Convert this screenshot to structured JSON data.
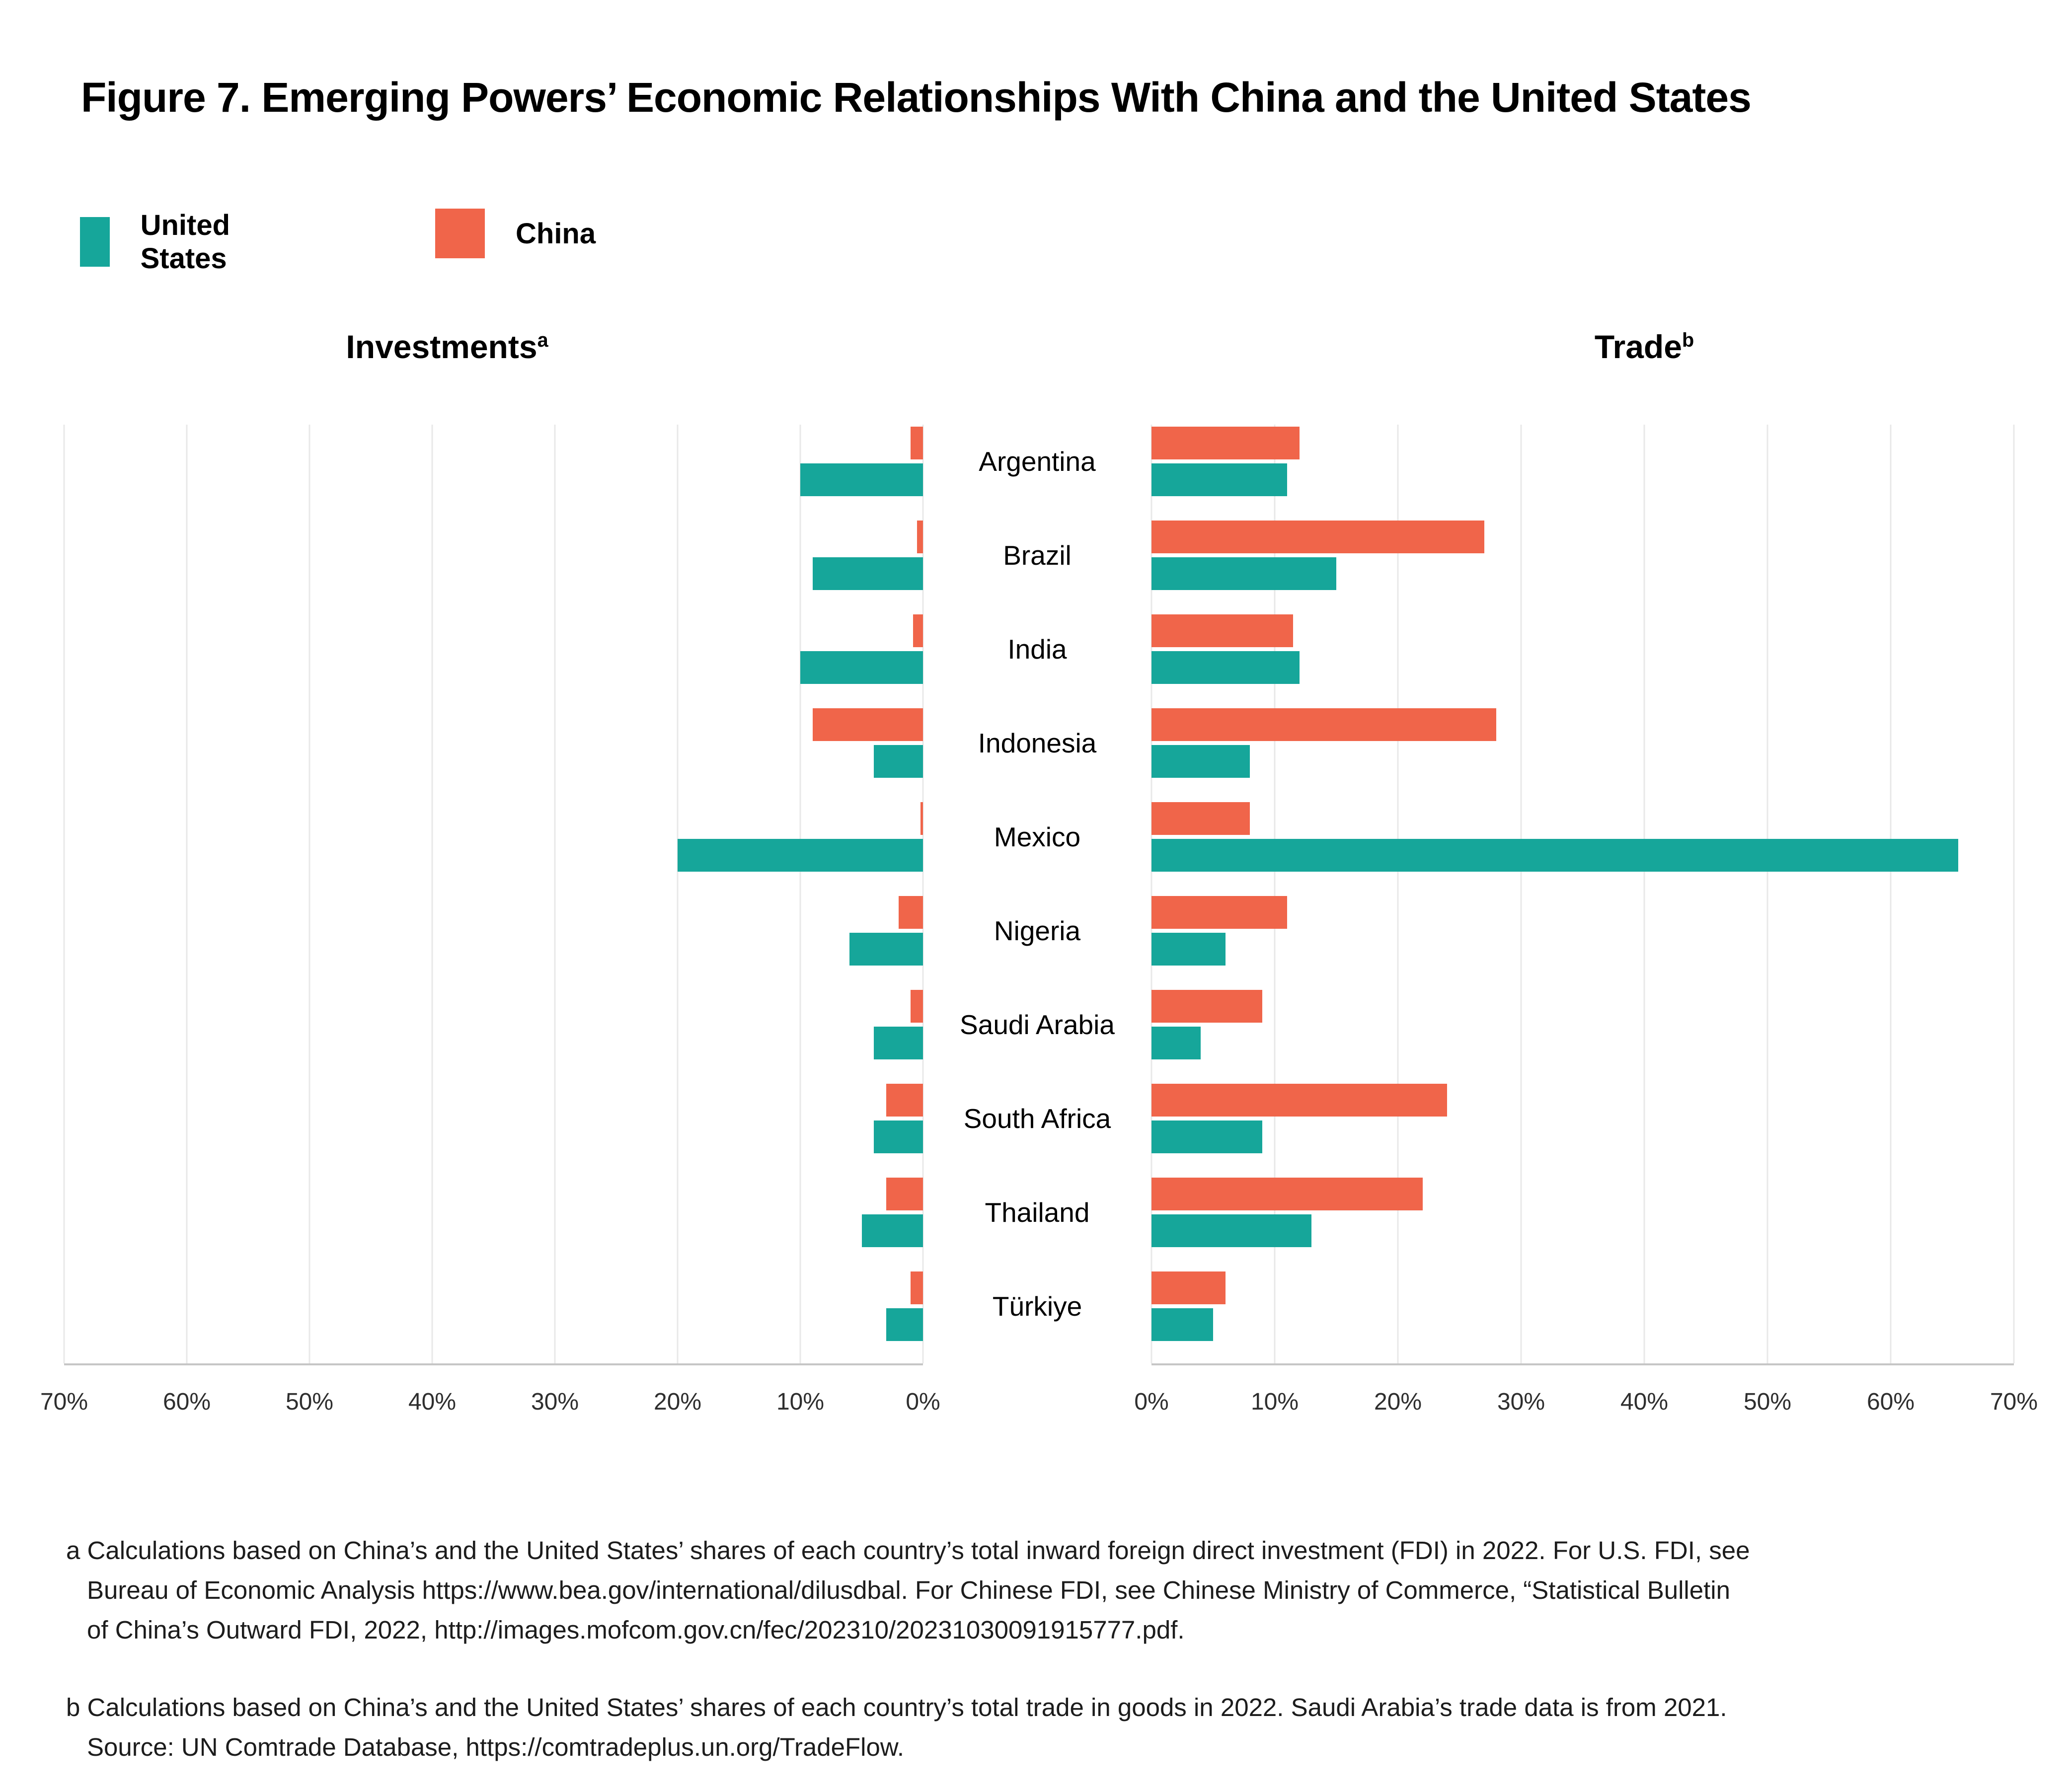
{
  "title": "Figure 7. Emerging Powers’ Economic Relationships With China and the United States",
  "legend": [
    {
      "label": "United States",
      "color": "#16A69A"
    },
    {
      "label": "China",
      "color": "#F0654A"
    }
  ],
  "panels": [
    {
      "title": "Investments",
      "sup": "a"
    },
    {
      "title": "Trade",
      "sup": "b"
    }
  ],
  "chart_data": {
    "type": "bar",
    "orientation": "horizontal-mirrored",
    "grid": true,
    "legend_position": "top-left",
    "series_order_top_to_bottom": [
      "China",
      "United States"
    ],
    "categories": [
      "Argentina",
      "Brazil",
      "India",
      "Indonesia",
      "Mexico",
      "Nigeria",
      "Saudi Arabia",
      "South Africa",
      "Thailand",
      "Türkiye"
    ],
    "panels": [
      {
        "title": "Investments",
        "footnote_ref": "a",
        "side": "left",
        "axis": {
          "min": 0,
          "max": 70,
          "tick_step": 10,
          "direction": "right-to-left",
          "tick_labels": [
            "70%",
            "60%",
            "50%",
            "40%",
            "30%",
            "20%",
            "10%",
            "0%"
          ]
        },
        "series": [
          {
            "name": "China",
            "color": "#F0654A",
            "values": [
              1,
              0.5,
              0.8,
              9,
              0.2,
              2,
              1,
              3,
              3,
              1
            ]
          },
          {
            "name": "United States",
            "color": "#16A69A",
            "values": [
              10,
              9,
              10,
              4,
              20,
              6,
              4,
              4,
              5,
              3
            ]
          }
        ]
      },
      {
        "title": "Trade",
        "footnote_ref": "b",
        "side": "right",
        "axis": {
          "min": 0,
          "max": 70,
          "tick_step": 10,
          "direction": "left-to-right",
          "tick_labels": [
            "0%",
            "10%",
            "20%",
            "30%",
            "40%",
            "50%",
            "60%",
            "70%"
          ]
        },
        "series": [
          {
            "name": "China",
            "color": "#F0654A",
            "values": [
              12,
              27,
              11.5,
              28,
              8,
              11,
              9,
              24,
              22,
              6
            ]
          },
          {
            "name": "United States",
            "color": "#16A69A",
            "values": [
              11,
              15,
              12,
              8,
              65.5,
              6,
              4,
              9,
              13,
              5
            ]
          }
        ]
      }
    ]
  },
  "footnotes": [
    {
      "marker": "a",
      "lines": [
        "a Calculations based on China’s and the United States’ shares of each country’s total inward foreign direct investment (FDI) in 2022. For U.S. FDI, see",
        "Bureau of Economic Analysis https://www.bea.gov/international/dilusdbal. For Chinese FDI, see Chinese Ministry of Commerce, “Statistical Bulletin",
        "of China’s Outward FDI, 2022, http://images.mofcom.gov.cn/fec/202310/20231030091915777.pdf."
      ]
    },
    {
      "marker": "b",
      "lines": [
        "b Calculations based on China’s and the United States’ shares of each country’s total trade in goods in 2022. Saudi Arabia’s trade data is from 2021.",
        "Source: UN Comtrade Database, https://comtradeplus.un.org/TradeFlow."
      ]
    }
  ]
}
